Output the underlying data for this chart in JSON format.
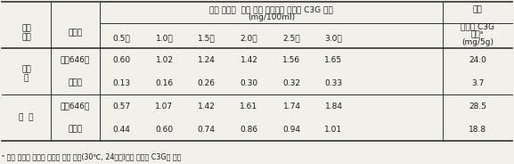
{
  "title_line1": "처리 시간에  따라 열수 추출물에 용출된 C3G 함량",
  "title_line2": "(mg/100ml)",
  "col_bigo": "비고",
  "col_hyunmi_line1": "현미의 C3G",
  "col_hyunmi_line2": "함량ᵃ",
  "col_hyunmi_line3": "(mg/5g)",
  "col_jaebae_line1": "재배",
  "col_jaebae_line2": "방법",
  "col_pumjong": "품종명",
  "time_cols": [
    "0.5분",
    "1.0분",
    "1.5분",
    "2.0분",
    "2.5분",
    "3.0분"
  ],
  "group1_label_line1": "보통",
  "group1_label_line2": "기",
  "group2_label": "만  기",
  "rows": [
    {
      "pumjong": "전주646호",
      "values": [
        0.6,
        1.02,
        1.24,
        1.42,
        1.56,
        1.65
      ],
      "bigo": "24.0"
    },
    {
      "pumjong": "흑진주",
      "values": [
        0.13,
        0.16,
        0.26,
        0.3,
        0.32,
        0.33
      ],
      "bigo": "3.7"
    },
    {
      "pumjong": "전주646호",
      "values": [
        0.57,
        1.07,
        1.42,
        1.61,
        1.74,
        1.84
      ],
      "bigo": "28.5"
    },
    {
      "pumjong": "흑진주",
      "values": [
        0.44,
        0.6,
        0.74,
        0.86,
        0.94,
        1.01
      ],
      "bigo": "18.8"
    }
  ],
  "footnote": "ᵃ 현미 가루를 메탄올 용매로 진탕 처리(30℃, 24시간)하여 추출한 C3G의 총량",
  "bg_color": "#f2f0eb",
  "text_color": "#1a1a1a",
  "line_color": "#333333"
}
